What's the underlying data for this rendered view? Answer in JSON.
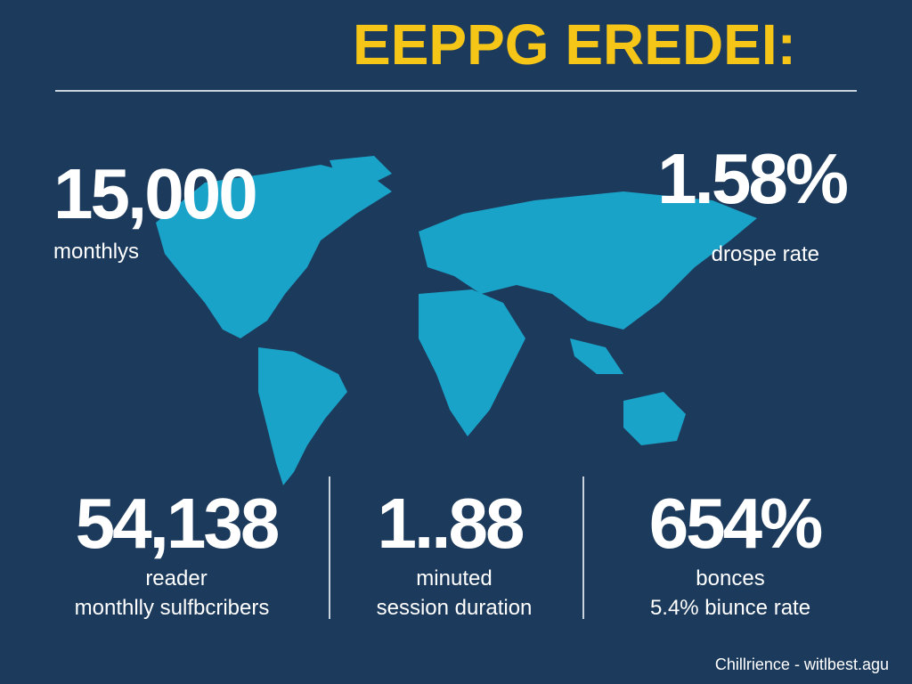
{
  "header": {
    "title": "EEPPG EREDEI:"
  },
  "top_stats": [
    {
      "value": "15,000",
      "label": "monthlys"
    },
    {
      "value": "1.58%",
      "label": "drospe rate"
    }
  ],
  "bottom_stats": [
    {
      "value": "54,138",
      "label": "reader",
      "sublabel": "monthlly sulfbcribers"
    },
    {
      "value": "1..88",
      "label": "minuted",
      "sublabel": "session duration"
    },
    {
      "value": "654%",
      "label": "bonces",
      "sublabel": "5.4% biunce rate"
    }
  ],
  "footer": {
    "source": "Chillrience - witlbest.agu"
  }
}
